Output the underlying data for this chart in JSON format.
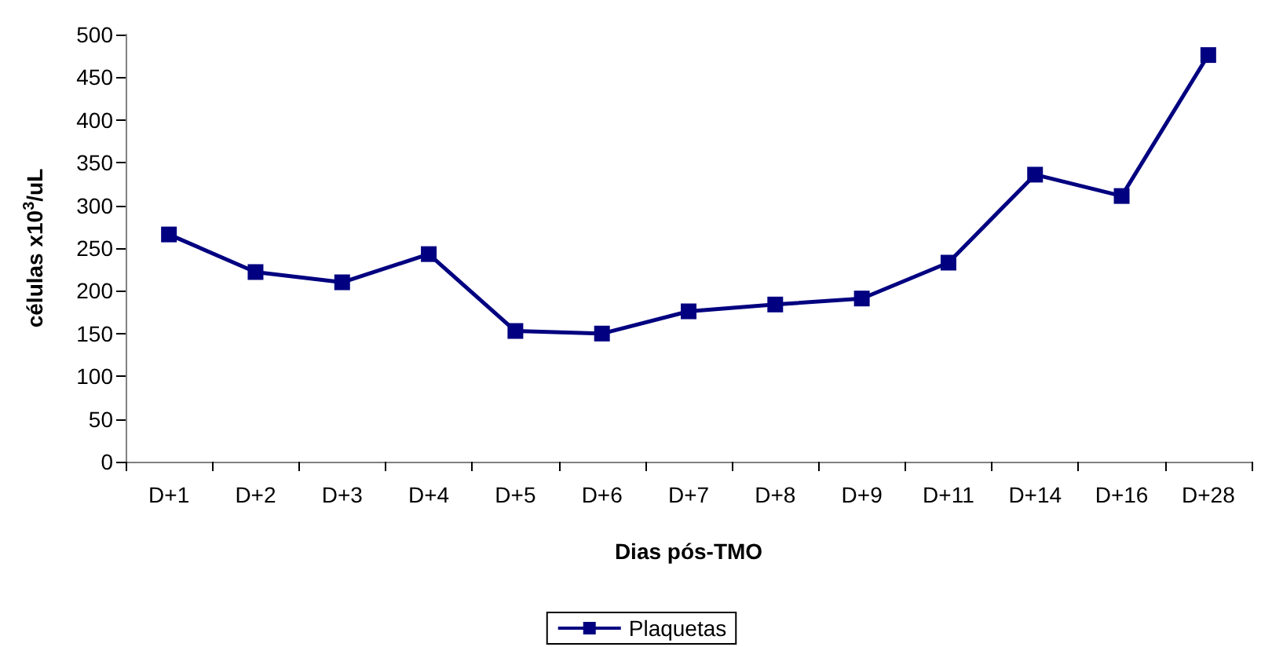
{
  "chart_data": {
    "type": "line",
    "xlabel": "Dias pós-TMO",
    "ylabel": "células x10$^{3}$/uL",
    "categories": [
      "D+1",
      "D+2",
      "D+3",
      "D+4",
      "D+5",
      "D+6",
      "D+7",
      "D+8",
      "D+9",
      "D+11",
      "D+14",
      "D+16",
      "D+28"
    ],
    "series": [
      {
        "name": "Plaquetas",
        "color": "#000080",
        "values": [
          266,
          222,
          210,
          243,
          153,
          150,
          176,
          184,
          191,
          233,
          336,
          311,
          476
        ]
      }
    ],
    "ylim": [
      0,
      500
    ],
    "yticks": [
      0,
      50,
      100,
      150,
      200,
      250,
      300,
      350,
      400,
      450,
      500
    ],
    "grid": false,
    "legend": "bottom",
    "marker": "square",
    "line_style": "solid"
  }
}
